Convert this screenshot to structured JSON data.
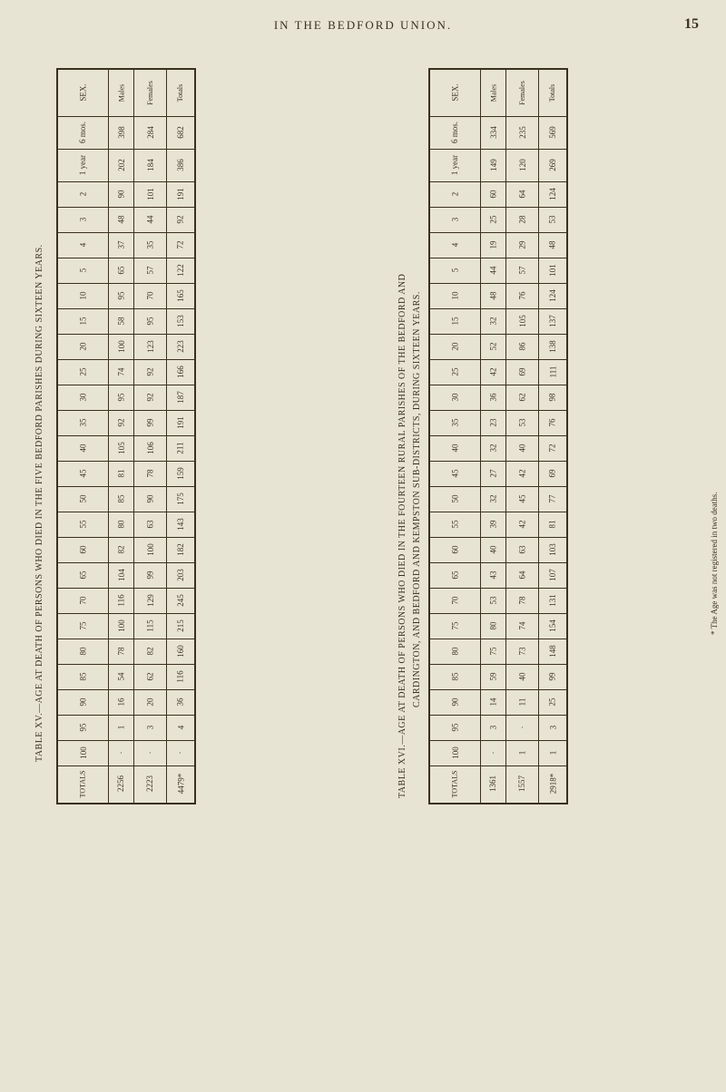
{
  "header": "IN THE BEDFORD UNION.",
  "pageNumber": "15",
  "captionLeft": "TABLE XV.—AGE AT DEATH OF PERSONS WHO DIED IN THE FIVE BEDFORD PARISHES DURING SIXTEEN YEARS.",
  "captionRightLine1": "TABLE XVI.—AGE AT DEATH OF PERSONS WHO DIED IN THE FOURTEEN RURAL PARISHES OF THE BEDFORD AND",
  "captionRightLine2": "CARDINGTON, AND BEDFORD AND KEMPSTON SUB-DISTRICTS, DURING SIXTEEN YEARS.",
  "footnote": "* The Age was not registered in two deaths.",
  "labels": {
    "sex": "SEX.",
    "males": "Males",
    "females": "Females",
    "totals": "Totals",
    "totalsCol": "TOTALS",
    "mos6": "6 mos.",
    "year1": "1 year"
  },
  "ages": [
    "2",
    "3",
    "4",
    "5",
    "10",
    "15",
    "20",
    "25",
    "30",
    "35",
    "40",
    "45",
    "50",
    "55",
    "60",
    "65",
    "70",
    "75",
    "80",
    "85",
    "90",
    "95",
    "100"
  ],
  "table1": {
    "males": {
      "mos6": "398",
      "year1": "202",
      "2": "90",
      "3": "48",
      "4": "37",
      "5": "65",
      "10": "95",
      "15": "58",
      "20": "100",
      "25": "74",
      "30": "95",
      "35": "92",
      "40": "105",
      "45": "81",
      "50": "85",
      "55": "80",
      "60": "82",
      "65": "104",
      "70": "116",
      "75": "100",
      "80": "78",
      "85": "54",
      "90": "16",
      "95": "1",
      "100": "·",
      "total": "2256"
    },
    "females": {
      "mos6": "284",
      "year1": "184",
      "2": "101",
      "3": "44",
      "4": "35",
      "5": "57",
      "10": "70",
      "15": "95",
      "20": "123",
      "25": "92",
      "30": "92",
      "35": "99",
      "40": "106",
      "45": "78",
      "50": "90",
      "55": "63",
      "60": "100",
      "65": "99",
      "70": "129",
      "75": "115",
      "80": "82",
      "85": "62",
      "90": "20",
      "95": "3",
      "100": "·",
      "total": "2223"
    },
    "totals": {
      "mos6": "682",
      "year1": "386",
      "2": "191",
      "3": "92",
      "4": "72",
      "5": "122",
      "10": "165",
      "15": "153",
      "20": "223",
      "25": "166",
      "30": "187",
      "35": "191",
      "40": "211",
      "45": "159",
      "50": "175",
      "55": "143",
      "60": "182",
      "65": "203",
      "70": "245",
      "75": "215",
      "80": "160",
      "85": "116",
      "90": "36",
      "95": "4",
      "100": "·",
      "total": "4479*"
    }
  },
  "table2": {
    "males": {
      "mos6": "334",
      "year1": "149",
      "2": "60",
      "3": "25",
      "4": "19",
      "5": "44",
      "10": "48",
      "15": "32",
      "20": "52",
      "25": "42",
      "30": "36",
      "35": "23",
      "40": "32",
      "45": "27",
      "50": "32",
      "55": "39",
      "60": "40",
      "65": "43",
      "70": "53",
      "75": "80",
      "80": "75",
      "85": "59",
      "90": "14",
      "95": "3",
      "100": "·",
      "total": "1361"
    },
    "females": {
      "mos6": "235",
      "year1": "120",
      "2": "64",
      "3": "28",
      "4": "29",
      "5": "57",
      "10": "76",
      "15": "105",
      "20": "86",
      "25": "69",
      "30": "62",
      "35": "53",
      "40": "40",
      "45": "42",
      "50": "45",
      "55": "42",
      "60": "63",
      "65": "64",
      "70": "78",
      "75": "74",
      "80": "73",
      "85": "40",
      "90": "11",
      "95": "·",
      "100": "1",
      "total": "1557"
    },
    "totals": {
      "mos6": "569",
      "year1": "269",
      "2": "124",
      "3": "53",
      "4": "48",
      "5": "101",
      "10": "124",
      "15": "137",
      "20": "138",
      "25": "111",
      "30": "98",
      "35": "76",
      "40": "72",
      "45": "69",
      "50": "77",
      "55": "81",
      "60": "103",
      "65": "107",
      "70": "131",
      "75": "154",
      "80": "148",
      "85": "99",
      "90": "25",
      "95": "3",
      "100": "1",
      "total": "2918*"
    }
  },
  "colors": {
    "bg": "#e8e4d4",
    "text": "#3a3020",
    "border": "#3a3020"
  }
}
